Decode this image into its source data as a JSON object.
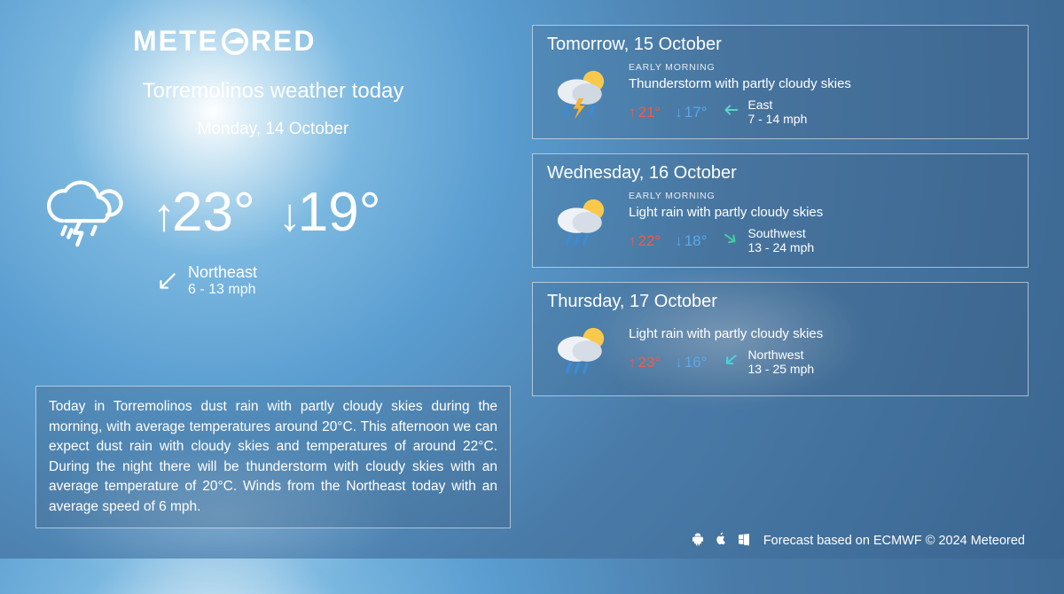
{
  "brand": {
    "pre": "METE",
    "post": "RED"
  },
  "location_title": "Torremolinos weather today",
  "today": {
    "date": "Monday, 14 October",
    "high": "23°",
    "low": "19°",
    "wind_dir": "Northeast",
    "wind_speed": "6 - 13 mph"
  },
  "description": "Today in Torremolinos dust rain with partly cloudy skies during the morning, with average temperatures around 20°C. This afternoon we can expect dust rain with cloudy skies and temperatures of around 22°C. During the night there will be thunderstorm with cloudy skies with an average temperature of 20°C. Winds from the Northeast today with an average speed of 6 mph.",
  "forecast": [
    {
      "date": "Tomorrow, 15 October",
      "badge": "EARLY MORNING",
      "condition": "Thunderstorm with partly cloudy skies",
      "high": "21°",
      "low": "17°",
      "wind_dir": "East",
      "wind_speed": "7 - 14 mph",
      "wind_color": "#5fd0c8",
      "icon": "thunder"
    },
    {
      "date": "Wednesday, 16 October",
      "badge": "EARLY MORNING",
      "condition": "Light rain with partly cloudy skies",
      "high": "22°",
      "low": "18°",
      "wind_dir": "Southwest",
      "wind_speed": "13 - 24 mph",
      "wind_color": "#3fcf9e",
      "icon": "rain"
    },
    {
      "date": "Thursday, 17 October",
      "badge": "",
      "condition": "Light rain with partly cloudy skies",
      "high": "23°",
      "low": "16°",
      "wind_dir": "Northwest",
      "wind_speed": "13 - 25 mph",
      "wind_color": "#46d6dd",
      "icon": "rain"
    }
  ],
  "footer": {
    "text": "Forecast based on ECMWF © 2024 Meteored"
  },
  "colors": {
    "hi": "#f05a4a",
    "lo": "#5aa8e8",
    "white": "#ffffff"
  }
}
